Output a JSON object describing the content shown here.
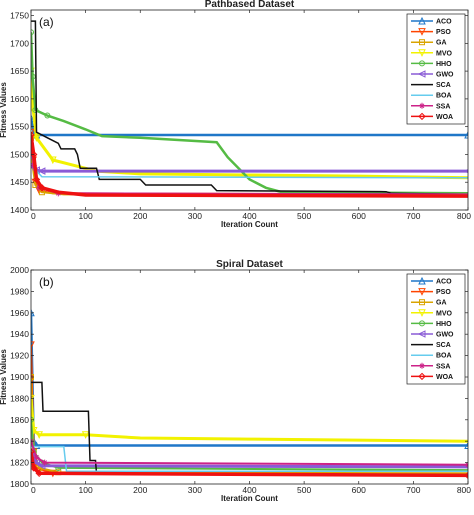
{
  "chart_data": [
    {
      "type": "line",
      "title": "Pathbased Dataset",
      "panel_label": "(a)",
      "xlabel": "Iteration Count",
      "ylabel": "Fitness Values",
      "xlim": [
        0,
        800
      ],
      "ylim": [
        1400,
        1760
      ],
      "xticks": [
        0,
        100,
        200,
        300,
        400,
        500,
        600,
        700,
        800
      ],
      "yticks": [
        1400,
        1450,
        1500,
        1550,
        1600,
        1650,
        1700,
        1750
      ],
      "legend_position": "top-right",
      "series": [
        {
          "name": "ACO",
          "color": "#1f77c8",
          "marker": "triangle-up",
          "width": 2.5,
          "points": [
            [
              0,
              1565
            ],
            [
              5,
              1540
            ],
            [
              10,
              1535
            ],
            [
              800,
              1535
            ]
          ]
        },
        {
          "name": "PSO",
          "color": "#ff4500",
          "marker": "triangle-down",
          "width": 2,
          "points": [
            [
              0,
              1540
            ],
            [
              4,
              1490
            ],
            [
              8,
              1450
            ],
            [
              15,
              1435
            ],
            [
              40,
              1430
            ],
            [
              800,
              1428
            ]
          ]
        },
        {
          "name": "GA",
          "color": "#d9a400",
          "marker": "square",
          "width": 2,
          "points": [
            [
              0,
              1530
            ],
            [
              3,
              1480
            ],
            [
              8,
              1445
            ],
            [
              20,
              1432
            ],
            [
              60,
              1428
            ],
            [
              800,
              1426
            ]
          ]
        },
        {
          "name": "MVO",
          "color": "#f2f200",
          "marker": "triangle-down",
          "width": 3,
          "points": [
            [
              0,
              1650
            ],
            [
              4,
              1580
            ],
            [
              10,
              1530
            ],
            [
              40,
              1490
            ],
            [
              80,
              1480
            ],
            [
              120,
              1470
            ],
            [
              200,
              1465
            ],
            [
              400,
              1463
            ],
            [
              600,
              1461
            ],
            [
              800,
              1458
            ]
          ]
        },
        {
          "name": "HHO",
          "color": "#55bb44",
          "marker": "circle",
          "width": 2.5,
          "points": [
            [
              0,
              1720
            ],
            [
              3,
              1640
            ],
            [
              8,
              1580
            ],
            [
              30,
              1570
            ],
            [
              60,
              1560
            ],
            [
              100,
              1545
            ],
            [
              130,
              1533
            ],
            [
              200,
              1530
            ],
            [
              340,
              1522
            ],
            [
              360,
              1495
            ],
            [
              400,
              1455
            ],
            [
              430,
              1440
            ],
            [
              460,
              1432
            ],
            [
              800,
              1430
            ]
          ]
        },
        {
          "name": "GWO",
          "color": "#8a5bd6",
          "marker": "triangle-left",
          "width": 3,
          "points": [
            [
              0,
              1480
            ],
            [
              10,
              1472
            ],
            [
              20,
              1470
            ],
            [
              800,
              1470
            ]
          ]
        },
        {
          "name": "SCA",
          "color": "#111111",
          "marker": "none",
          "width": 1.5,
          "points": [
            [
              0,
              1740
            ],
            [
              8,
              1740
            ],
            [
              10,
              1540
            ],
            [
              30,
              1530
            ],
            [
              50,
              1520
            ],
            [
              55,
              1510
            ],
            [
              80,
              1510
            ],
            [
              85,
              1500
            ],
            [
              90,
              1475
            ],
            [
              120,
              1475
            ],
            [
              125,
              1455
            ],
            [
              200,
              1455
            ],
            [
              210,
              1445
            ],
            [
              330,
              1445
            ],
            [
              340,
              1435
            ],
            [
              650,
              1433
            ],
            [
              660,
              1430
            ],
            [
              800,
              1428
            ]
          ]
        },
        {
          "name": "BOA",
          "color": "#66ccee",
          "marker": "none",
          "width": 1.5,
          "points": [
            [
              0,
              1500
            ],
            [
              10,
              1470
            ],
            [
              20,
              1460
            ],
            [
              800,
              1458
            ]
          ]
        },
        {
          "name": "SSA",
          "color": "#cc2288",
          "marker": "asterisk",
          "width": 2,
          "points": [
            [
              0,
              1520
            ],
            [
              5,
              1480
            ],
            [
              15,
              1440
            ],
            [
              50,
              1430
            ],
            [
              800,
              1428
            ]
          ]
        },
        {
          "name": "WOA",
          "color": "#ee1111",
          "marker": "diamond",
          "width": 3.5,
          "points": [
            [
              0,
              1535
            ],
            [
              5,
              1500
            ],
            [
              10,
              1455
            ],
            [
              20,
              1440
            ],
            [
              50,
              1432
            ],
            [
              100,
              1427
            ],
            [
              800,
              1425
            ]
          ]
        }
      ]
    },
    {
      "type": "line",
      "title": "Spiral Dataset",
      "panel_label": "(b)",
      "xlabel": "Iteration Count",
      "ylabel": "Fitness Values",
      "xlim": [
        0,
        800
      ],
      "ylim": [
        1800,
        2000
      ],
      "xticks": [
        0,
        100,
        200,
        300,
        400,
        500,
        600,
        700,
        800
      ],
      "yticks": [
        1800,
        1820,
        1840,
        1860,
        1880,
        1900,
        1920,
        1940,
        1960,
        1980,
        2000
      ],
      "legend_position": "top-right",
      "series": [
        {
          "name": "ACO",
          "color": "#1f77c8",
          "marker": "triangle-up",
          "width": 2.5,
          "points": [
            [
              0,
              1960
            ],
            [
              5,
              1840
            ],
            [
              10,
              1836
            ],
            [
              800,
              1836
            ]
          ]
        },
        {
          "name": "PSO",
          "color": "#ff4500",
          "marker": "triangle-down",
          "width": 2,
          "points": [
            [
              0,
              1930
            ],
            [
              5,
              1830
            ],
            [
              10,
              1815
            ],
            [
              40,
              1810
            ],
            [
              800,
              1808
            ]
          ]
        },
        {
          "name": "GA",
          "color": "#d9a400",
          "marker": "square",
          "width": 2,
          "points": [
            [
              0,
              1900
            ],
            [
              5,
              1830
            ],
            [
              15,
              1815
            ],
            [
              50,
              1811
            ],
            [
              800,
              1810
            ]
          ]
        },
        {
          "name": "MVO",
          "color": "#f2f200",
          "marker": "triangle-down",
          "width": 3,
          "points": [
            [
              0,
              1880
            ],
            [
              5,
              1850
            ],
            [
              15,
              1846
            ],
            [
              100,
              1846
            ],
            [
              200,
              1843
            ],
            [
              400,
              1842
            ],
            [
              800,
              1840
            ]
          ]
        },
        {
          "name": "HHO",
          "color": "#55bb44",
          "marker": "circle",
          "width": 2,
          "points": [
            [
              0,
              1860
            ],
            [
              5,
              1830
            ],
            [
              20,
              1820
            ],
            [
              50,
              1815
            ],
            [
              800,
              1813
            ]
          ]
        },
        {
          "name": "GWO",
          "color": "#8a5bd6",
          "marker": "triangle-left",
          "width": 3,
          "points": [
            [
              0,
              1830
            ],
            [
              10,
              1820
            ],
            [
              20,
              1817
            ],
            [
              800,
              1816
            ]
          ]
        },
        {
          "name": "SCA",
          "color": "#111111",
          "marker": "none",
          "width": 1.5,
          "points": [
            [
              0,
              1895
            ],
            [
              20,
              1895
            ],
            [
              22,
              1868
            ],
            [
              105,
              1868
            ],
            [
              108,
              1822
            ],
            [
              118,
              1822
            ],
            [
              120,
              1810
            ]
          ]
        },
        {
          "name": "BOA",
          "color": "#66ccee",
          "marker": "none",
          "width": 1.5,
          "points": [
            [
              0,
              1835
            ],
            [
              60,
              1835
            ],
            [
              65,
              1812
            ],
            [
              800,
              1812
            ]
          ]
        },
        {
          "name": "SSA",
          "color": "#cc2288",
          "marker": "asterisk",
          "width": 2,
          "points": [
            [
              0,
              1840
            ],
            [
              10,
              1825
            ],
            [
              25,
              1820
            ],
            [
              800,
              1818
            ]
          ]
        },
        {
          "name": "WOA",
          "color": "#ee1111",
          "marker": "diamond",
          "width": 3.5,
          "points": [
            [
              0,
              1830
            ],
            [
              5,
              1815
            ],
            [
              15,
              1810
            ],
            [
              800,
              1808
            ]
          ]
        }
      ]
    }
  ]
}
